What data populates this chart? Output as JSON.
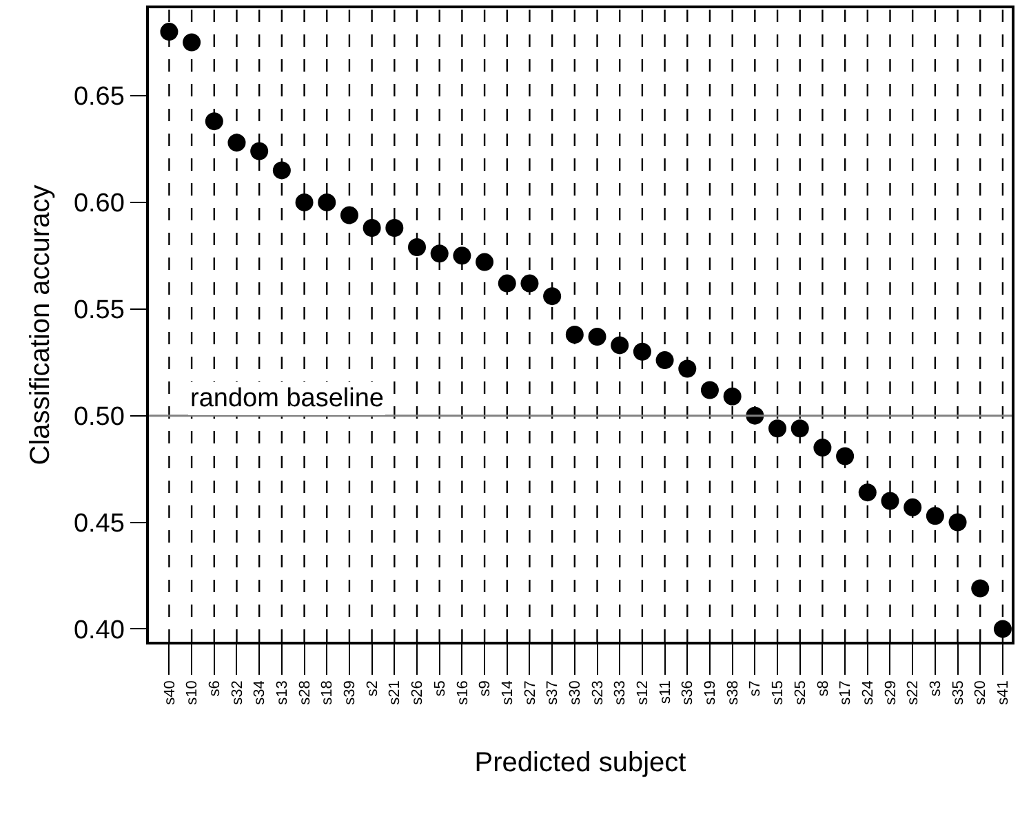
{
  "chart_data": {
    "type": "scatter",
    "xlabel": "Predicted subject",
    "ylabel": "Classification accuracy",
    "categories": [
      "s40",
      "s10",
      "s6",
      "s32",
      "s34",
      "s13",
      "s28",
      "s18",
      "s39",
      "s2",
      "s21",
      "s26",
      "s5",
      "s16",
      "s9",
      "s14",
      "s27",
      "s37",
      "s30",
      "s23",
      "s33",
      "s12",
      "s11",
      "s36",
      "s19",
      "s38",
      "s7",
      "s15",
      "s25",
      "s8",
      "s17",
      "s24",
      "s29",
      "s22",
      "s3",
      "s35",
      "s20",
      "s41"
    ],
    "series": [
      {
        "color": "#000000",
        "values": [
          0.68,
          0.675,
          0.638,
          0.628,
          0.624,
          0.615,
          0.6,
          0.6,
          0.594,
          0.588,
          0.588,
          0.579,
          0.576,
          0.575,
          0.572,
          0.562,
          0.562,
          0.556,
          0.538,
          0.537,
          0.533,
          0.53,
          0.526,
          0.522,
          0.512,
          0.509,
          0.5,
          0.494,
          0.494,
          0.485,
          0.481,
          0.464,
          0.46,
          0.457,
          0.453,
          0.45,
          0.419,
          0.4
        ]
      }
    ],
    "ylim": [
      0.394,
      0.691
    ],
    "yticks": [
      {
        "value": 0.4,
        "label": "0.40"
      },
      0.45,
      {
        "value": 0.5,
        "label": "0.50"
      },
      0.55,
      {
        "value": 0.6,
        "label": "0.60"
      },
      0.65
    ],
    "ref_lines": [
      {
        "axis": "y",
        "value": 0.5,
        "label": "random baseline",
        "color": "#808080"
      }
    ],
    "grid": "x",
    "line_style": "dashed",
    "marker": "circle"
  }
}
